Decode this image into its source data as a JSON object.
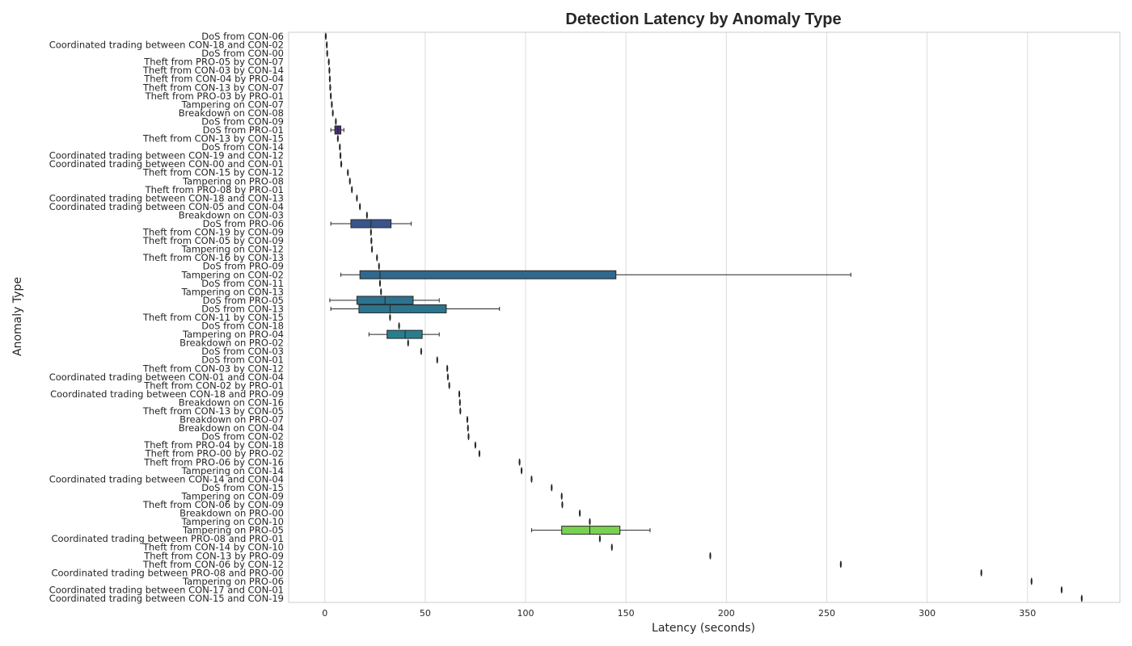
{
  "chart_data": {
    "type": "boxplot",
    "orientation": "horizontal",
    "title": "Detection Latency by Anomaly Type",
    "xlabel": "Latency (seconds)",
    "ylabel": "Anomaly Type",
    "xlim": [
      -18,
      396
    ],
    "xticks": [
      0,
      50,
      100,
      150,
      200,
      250,
      300,
      350
    ],
    "grid": true,
    "palette": "viridis",
    "categories": [
      "DoS from CON-06",
      "Coordinated trading between CON-18 and CON-02",
      "DoS from CON-00",
      "Theft from PRO-05 by CON-07",
      "Theft from CON-03 by CON-14",
      "Theft from CON-04 by PRO-04",
      "Theft from CON-13 by CON-07",
      "Theft from PRO-03 by PRO-01",
      "Tampering on CON-07",
      "Breakdown on CON-08",
      "DoS from CON-09",
      "DoS from PRO-01",
      "Theft from CON-13 by CON-15",
      "DoS from CON-14",
      "Coordinated trading between CON-19 and CON-12",
      "Coordinated trading between CON-00 and CON-01",
      "Theft from CON-15 by CON-12",
      "Tampering on PRO-08",
      "Theft from PRO-08 by PRO-01",
      "Coordinated trading between CON-18 and CON-13",
      "Coordinated trading between CON-05 and CON-04",
      "Breakdown on CON-03",
      "DoS from PRO-06",
      "Theft from CON-19 by CON-09",
      "Theft from CON-05 by CON-09",
      "Tampering on CON-12",
      "Theft from CON-16 by CON-13",
      "DoS from PRO-09",
      "Tampering on CON-02",
      "DoS from CON-11",
      "Tampering on CON-13",
      "DoS from PRO-05",
      "DoS from CON-13",
      "Theft from CON-11 by CON-15",
      "DoS from CON-18",
      "Tampering on PRO-04",
      "Breakdown on PRO-02",
      "DoS from CON-03",
      "DoS from CON-01",
      "Theft from CON-03 by CON-12",
      "Coordinated trading between CON-01 and CON-04",
      "Theft from CON-02 by PRO-01",
      "Coordinated trading between CON-18 and PRO-09",
      "Breakdown on CON-16",
      "Theft from CON-13 by CON-05",
      "Breakdown on PRO-07",
      "Breakdown on CON-04",
      "DoS from CON-02",
      "Theft from PRO-04 by CON-18",
      "Theft from PRO-00 by PRO-02",
      "Theft from PRO-06 by CON-16",
      "Tampering on CON-14",
      "Coordinated trading between CON-14 and CON-04",
      "DoS from CON-15",
      "Tampering on CON-09",
      "Theft from CON-06 by CON-09",
      "Breakdown on PRO-00",
      "Tampering on CON-10",
      "Tampering on PRO-05",
      "Coordinated trading between PRO-08 and PRO-01",
      "Theft from CON-14 by CON-10",
      "Theft from CON-13 by PRO-09",
      "Theft from CON-06 by CON-12",
      "Coordinated trading between PRO-08 and PRO-00",
      "Tampering on PRO-06",
      "Coordinated trading between CON-17 and CON-01",
      "Coordinated trading between CON-15 and CON-19"
    ],
    "boxes": [
      {
        "min": 0.5,
        "q1": 0.5,
        "median": 0.5,
        "q3": 0.5,
        "max": 0.5
      },
      {
        "min": 1,
        "q1": 1,
        "median": 1,
        "q3": 1,
        "max": 1
      },
      {
        "min": 1.2,
        "q1": 1.2,
        "median": 1.2,
        "q3": 1.2,
        "max": 1.2
      },
      {
        "min": 2,
        "q1": 2,
        "median": 2,
        "q3": 2,
        "max": 2
      },
      {
        "min": 2.3,
        "q1": 2.3,
        "median": 2.3,
        "q3": 2.3,
        "max": 2.3
      },
      {
        "min": 2.5,
        "q1": 2.5,
        "median": 2.5,
        "q3": 2.5,
        "max": 2.5
      },
      {
        "min": 2.7,
        "q1": 2.7,
        "median": 2.7,
        "q3": 2.7,
        "max": 2.7
      },
      {
        "min": 3,
        "q1": 3,
        "median": 3,
        "q3": 3,
        "max": 3
      },
      {
        "min": 3.5,
        "q1": 3.5,
        "median": 3.5,
        "q3": 3.5,
        "max": 3.5
      },
      {
        "min": 4,
        "q1": 4,
        "median": 4,
        "q3": 4,
        "max": 4
      },
      {
        "min": 5.5,
        "q1": 5.5,
        "median": 5.5,
        "q3": 5.5,
        "max": 5.5
      },
      {
        "min": 3,
        "q1": 5,
        "median": 6.5,
        "q3": 8,
        "max": 9.5
      },
      {
        "min": 6.5,
        "q1": 6.5,
        "median": 6.5,
        "q3": 6.5,
        "max": 6.5
      },
      {
        "min": 7.5,
        "q1": 7.5,
        "median": 7.5,
        "q3": 7.5,
        "max": 7.5
      },
      {
        "min": 7.8,
        "q1": 7.8,
        "median": 7.8,
        "q3": 7.8,
        "max": 7.8
      },
      {
        "min": 8.2,
        "q1": 8.2,
        "median": 8.2,
        "q3": 8.2,
        "max": 8.2
      },
      {
        "min": 11.5,
        "q1": 11.5,
        "median": 11.5,
        "q3": 11.5,
        "max": 11.5
      },
      {
        "min": 12.5,
        "q1": 12.5,
        "median": 12.5,
        "q3": 12.5,
        "max": 12.5
      },
      {
        "min": 13.5,
        "q1": 13.5,
        "median": 13.5,
        "q3": 13.5,
        "max": 13.5
      },
      {
        "min": 16,
        "q1": 16,
        "median": 16,
        "q3": 16,
        "max": 16
      },
      {
        "min": 17.5,
        "q1": 17.5,
        "median": 17.5,
        "q3": 17.5,
        "max": 17.5
      },
      {
        "min": 21,
        "q1": 21,
        "median": 21,
        "q3": 21,
        "max": 21
      },
      {
        "min": 3,
        "q1": 13,
        "median": 23,
        "q3": 33,
        "max": 43
      },
      {
        "min": 23,
        "q1": 23,
        "median": 23,
        "q3": 23,
        "max": 23
      },
      {
        "min": 23.2,
        "q1": 23.2,
        "median": 23.2,
        "q3": 23.2,
        "max": 23.2
      },
      {
        "min": 23.5,
        "q1": 23.5,
        "median": 23.5,
        "q3": 23.5,
        "max": 23.5
      },
      {
        "min": 26,
        "q1": 26,
        "median": 26,
        "q3": 26,
        "max": 26
      },
      {
        "min": 27,
        "q1": 27,
        "median": 27,
        "q3": 27,
        "max": 27
      },
      {
        "min": 8,
        "q1": 17.5,
        "median": 27.5,
        "q3": 145,
        "max": 262
      },
      {
        "min": 27.5,
        "q1": 27.5,
        "median": 27.5,
        "q3": 27.5,
        "max": 27.5
      },
      {
        "min": 28,
        "q1": 28,
        "median": 28,
        "q3": 28,
        "max": 28
      },
      {
        "min": 2.5,
        "q1": 16,
        "median": 30,
        "q3": 44,
        "max": 57
      },
      {
        "min": 3,
        "q1": 17,
        "median": 32.5,
        "q3": 60.5,
        "max": 87
      },
      {
        "min": 32.5,
        "q1": 32.5,
        "median": 32.5,
        "q3": 32.5,
        "max": 32.5
      },
      {
        "min": 37,
        "q1": 37,
        "median": 37,
        "q3": 37,
        "max": 37
      },
      {
        "min": 22,
        "q1": 31,
        "median": 40,
        "q3": 48.5,
        "max": 57
      },
      {
        "min": 41.5,
        "q1": 41.5,
        "median": 41.5,
        "q3": 41.5,
        "max": 41.5
      },
      {
        "min": 48,
        "q1": 48,
        "median": 48,
        "q3": 48,
        "max": 48
      },
      {
        "min": 56,
        "q1": 56,
        "median": 56,
        "q3": 56,
        "max": 56
      },
      {
        "min": 61,
        "q1": 61,
        "median": 61,
        "q3": 61,
        "max": 61
      },
      {
        "min": 61.3,
        "q1": 61.3,
        "median": 61.3,
        "q3": 61.3,
        "max": 61.3
      },
      {
        "min": 62,
        "q1": 62,
        "median": 62,
        "q3": 62,
        "max": 62
      },
      {
        "min": 67,
        "q1": 67,
        "median": 67,
        "q3": 67,
        "max": 67
      },
      {
        "min": 67.3,
        "q1": 67.3,
        "median": 67.3,
        "q3": 67.3,
        "max": 67.3
      },
      {
        "min": 67.5,
        "q1": 67.5,
        "median": 67.5,
        "q3": 67.5,
        "max": 67.5
      },
      {
        "min": 71,
        "q1": 71,
        "median": 71,
        "q3": 71,
        "max": 71
      },
      {
        "min": 71.3,
        "q1": 71.3,
        "median": 71.3,
        "q3": 71.3,
        "max": 71.3
      },
      {
        "min": 71.6,
        "q1": 71.6,
        "median": 71.6,
        "q3": 71.6,
        "max": 71.6
      },
      {
        "min": 75,
        "q1": 75,
        "median": 75,
        "q3": 75,
        "max": 75
      },
      {
        "min": 77,
        "q1": 77,
        "median": 77,
        "q3": 77,
        "max": 77
      },
      {
        "min": 97,
        "q1": 97,
        "median": 97,
        "q3": 97,
        "max": 97
      },
      {
        "min": 98,
        "q1": 98,
        "median": 98,
        "q3": 98,
        "max": 98
      },
      {
        "min": 103,
        "q1": 103,
        "median": 103,
        "q3": 103,
        "max": 103
      },
      {
        "min": 113,
        "q1": 113,
        "median": 113,
        "q3": 113,
        "max": 113
      },
      {
        "min": 118,
        "q1": 118,
        "median": 118,
        "q3": 118,
        "max": 118
      },
      {
        "min": 118.3,
        "q1": 118.3,
        "median": 118.3,
        "q3": 118.3,
        "max": 118.3
      },
      {
        "min": 127,
        "q1": 127,
        "median": 127,
        "q3": 127,
        "max": 127
      },
      {
        "min": 132,
        "q1": 132,
        "median": 132,
        "q3": 132,
        "max": 132
      },
      {
        "min": 103,
        "q1": 118,
        "median": 132,
        "q3": 147,
        "max": 162
      },
      {
        "min": 137,
        "q1": 137,
        "median": 137,
        "q3": 137,
        "max": 137
      },
      {
        "min": 143,
        "q1": 143,
        "median": 143,
        "q3": 143,
        "max": 143
      },
      {
        "min": 192,
        "q1": 192,
        "median": 192,
        "q3": 192,
        "max": 192
      },
      {
        "min": 257,
        "q1": 257,
        "median": 257,
        "q3": 257,
        "max": 257
      },
      {
        "min": 327,
        "q1": 327,
        "median": 327,
        "q3": 327,
        "max": 327
      },
      {
        "min": 352,
        "q1": 352,
        "median": 352,
        "q3": 352,
        "max": 352
      },
      {
        "min": 367,
        "q1": 367,
        "median": 367,
        "q3": 367,
        "max": 367
      },
      {
        "min": 377,
        "q1": 377,
        "median": 377,
        "q3": 377,
        "max": 377
      }
    ],
    "colors": {
      "background": "#ffffff",
      "grid": "#dcdcdc",
      "axis": "#bcbcbc",
      "text": "#262626",
      "box_edge": "#262626"
    }
  }
}
